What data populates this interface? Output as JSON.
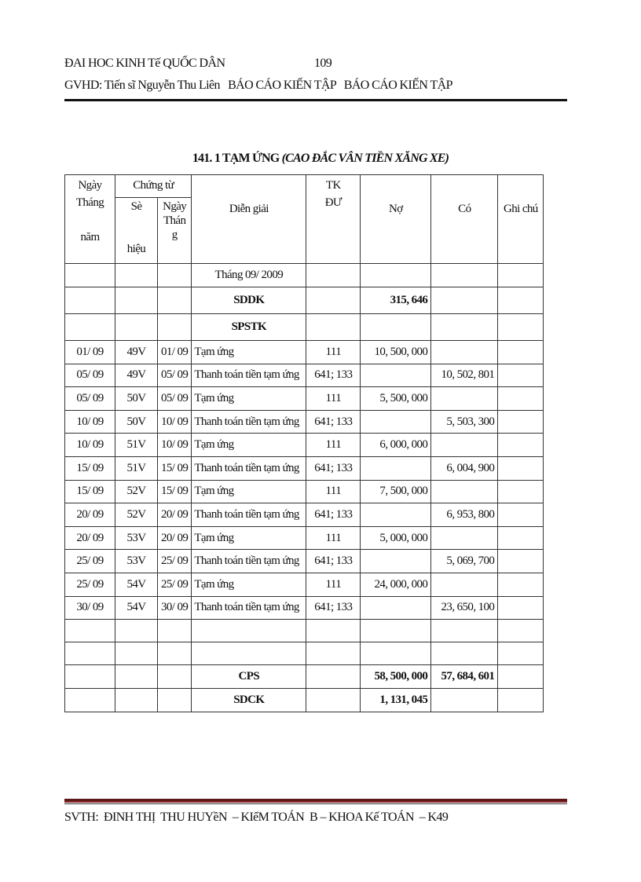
{
  "header": {
    "line1": "ĐAI HOC KINH Tế QUỐC DÂN",
    "page_number": "109",
    "line2": "GVHD: Tiến sĩ Nguyễn Thu Liên   BÁO CÁO KIẾN TẬP   BÁO CÁO KIẾN TẬP"
  },
  "title": {
    "main": "141. 1 TẠM ỨNG ",
    "sub": "(CAO ĐẮC VÂN TIỀN XĂNG XE)"
  },
  "table": {
    "headers": {
      "ngay_thang_nam": "Ngày\nTháng\n\nnăm",
      "chung_tu": "Chứng từ",
      "so_hieu": "Sè\n\n\nhiệu",
      "ngay_thang": "Ngày\nThán\ng",
      "dien_giai": "Diễn giải",
      "tk_du": "TK\nĐƯ",
      "no": "Nợ",
      "co": "Có",
      "ghi_chu": "Ghi chú"
    },
    "month_label": "Tháng  09/ 2009",
    "opening": {
      "label": "SDDK",
      "no": "315, 646"
    },
    "period_label": "SPSTK",
    "rows": [
      {
        "date": "01/ 09",
        "so": "49V",
        "ngay": "01/ 09",
        "desc": "Tạm ứng",
        "tk": "111",
        "no": "10, 500, 000",
        "co": ""
      },
      {
        "date": "05/ 09",
        "so": "49V",
        "ngay": "05/ 09",
        "desc": "Thanh  toán tiền tạm ứng",
        "tk": "641; 133",
        "no": "",
        "co": "10, 502, 801"
      },
      {
        "date": "05/ 09",
        "so": "50V",
        "ngay": "05/ 09",
        "desc": "Tạm ứng",
        "tk": "111",
        "no": "5, 500, 000",
        "co": ""
      },
      {
        "date": "10/ 09",
        "so": "50V",
        "ngay": "10/ 09",
        "desc": "Thanh  toán tiền tạm ứng",
        "tk": "641; 133",
        "no": "",
        "co": "5, 503, 300"
      },
      {
        "date": "10/ 09",
        "so": "51V",
        "ngay": "10/ 09",
        "desc": "Tạm ứng",
        "tk": "111",
        "no": "6, 000, 000",
        "co": ""
      },
      {
        "date": "15/ 09",
        "so": "51V",
        "ngay": "15/ 09",
        "desc": "Thanh  toán tiền tạm ứng",
        "tk": "641; 133",
        "no": "",
        "co": "6, 004, 900"
      },
      {
        "date": "15/ 09",
        "so": "52V",
        "ngay": "15/ 09",
        "desc": "Tạm ứng",
        "tk": "111",
        "no": "7, 500, 000",
        "co": ""
      },
      {
        "date": "20/ 09",
        "so": "52V",
        "ngay": "20/ 09",
        "desc": "Thanh  toán tiền tạm ứng",
        "tk": "641; 133",
        "no": "",
        "co": "6, 953, 800"
      },
      {
        "date": "20/ 09",
        "so": "53V",
        "ngay": "20/ 09",
        "desc": "Tạm ứng",
        "tk": "111",
        "no": "5, 000, 000",
        "co": ""
      },
      {
        "date": "25/ 09",
        "so": "53V",
        "ngay": "25/ 09",
        "desc": "Thanh  toán tiền tạm ứng",
        "tk": "641; 133",
        "no": "",
        "co": "5, 069, 700"
      },
      {
        "date": "25/ 09",
        "so": "54V",
        "ngay": "25/ 09",
        "desc": "Tạm ứng",
        "tk": "111",
        "no": "24, 000, 000",
        "co": ""
      },
      {
        "date": "30/ 09",
        "so": "54V",
        "ngay": "30/ 09",
        "desc": "Thanh  toán tiền tạm ứng",
        "tk": "641; 133",
        "no": "",
        "co": "23, 650, 100"
      }
    ],
    "totals": {
      "label": "CPS",
      "no": "58, 500, 000",
      "co": "57, 684, 601"
    },
    "closing": {
      "label": "SDCK",
      "no": "1, 131, 045"
    }
  },
  "footer": {
    "text": "SVTH:  ĐINH THỊ  THU HUYềN  – KIểM TOÁN  B – KHOA Kế TOÁN  – K49"
  },
  "colors": {
    "rule": "#111111",
    "footer_rule": "#5a1818"
  }
}
